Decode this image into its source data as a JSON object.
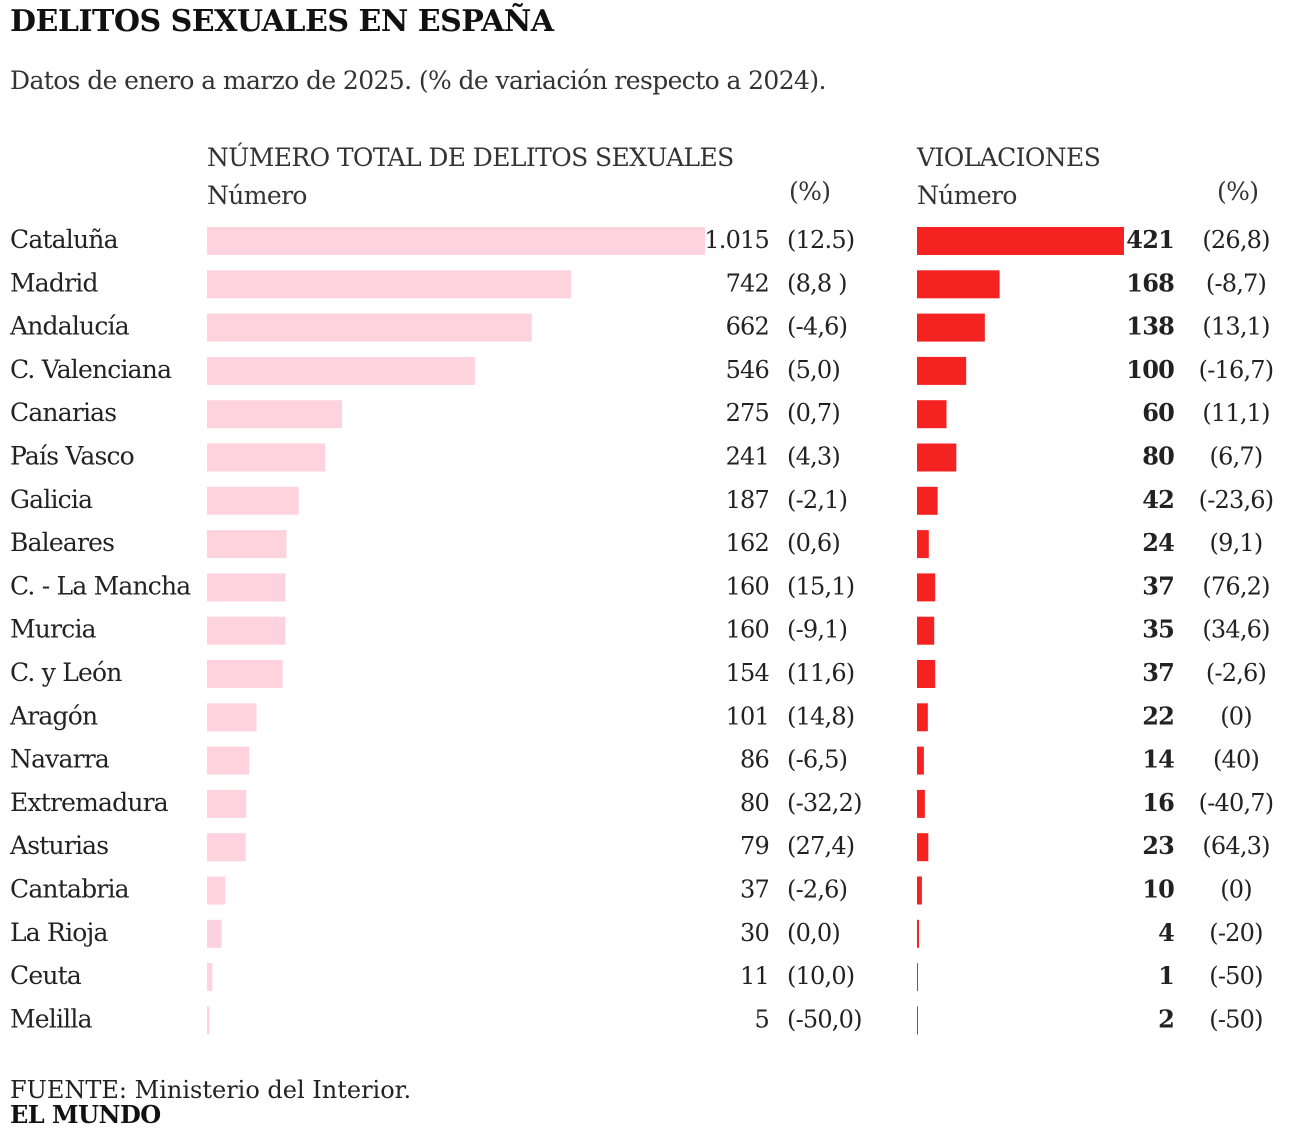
{
  "title": "DELITOS SEXUALES EN ESPAÑA",
  "subtitle": "Datos de enero a marzo de 2025.  (% de variación respecto a 2024).",
  "left_header": {
    "title": "NÚMERO TOTAL DE DELITOS SEXUALES",
    "num_label": "Número",
    "pct_label": "(%)"
  },
  "right_header": {
    "title": "VIOLACIONES",
    "num_label": "Número",
    "pct_label": "(%)"
  },
  "source_prefix": "FUENTE:",
  "source": "Ministerio del Interior.",
  "brand": "EL MUNDO",
  "colors": {
    "total_bar": "#ffd3de",
    "rape_bar": "#f52222",
    "text": "#222222"
  },
  "chart_data": {
    "type": "bar",
    "orientation": "horizontal",
    "categories": [
      "Cataluña",
      "Madrid",
      "Andalucía",
      "C. Valenciana",
      "Canarias",
      "País Vasco",
      "Galicia",
      "Baleares",
      "C. - La Mancha",
      "Murcia",
      "C. y León",
      "Aragón",
      "Navarra",
      "Extremadura",
      "Asturias",
      "Cantabria",
      "La Rioja",
      "Ceuta",
      "Melilla"
    ],
    "series": [
      {
        "name": "NÚMERO TOTAL DE DELITOS SEXUALES",
        "values": [
          1015,
          742,
          662,
          546,
          275,
          241,
          187,
          162,
          160,
          160,
          154,
          101,
          86,
          80,
          79,
          37,
          30,
          11,
          5
        ],
        "value_labels": [
          "1.015",
          "742",
          "662",
          "546",
          "275",
          "241",
          "187",
          "162",
          "160",
          "160",
          "154",
          "101",
          "86",
          "80",
          "79",
          "37",
          "30",
          "11",
          "5"
        ],
        "pct_labels": [
          "(12.5)",
          "(8,8 )",
          "(-4,6)",
          "(5,0)",
          "(0,7)",
          "(4,3)",
          "(-2,1)",
          "(0,6)",
          "(15,1)",
          "(-9,1)",
          "(11,6)",
          "(14,8)",
          "(-6,5)",
          "(-32,2)",
          "(27,4)",
          "(-2,6)",
          "(0,0)",
          "(10,0)",
          "(-50,0)"
        ]
      },
      {
        "name": "VIOLACIONES",
        "values": [
          421,
          168,
          138,
          100,
          60,
          80,
          42,
          24,
          37,
          35,
          37,
          22,
          14,
          16,
          23,
          10,
          4,
          1,
          2
        ],
        "value_labels": [
          "421",
          "168",
          "138",
          "100",
          "60",
          "80",
          "42",
          "24",
          "37",
          "35",
          "37",
          "22",
          "14",
          "16",
          "23",
          "10",
          "4",
          "1",
          "2"
        ],
        "pct_labels": [
          "(26,8)",
          "(-8,7)",
          "(13,1)",
          "(-16,7)",
          "(11,1)",
          "(6,7)",
          "(-23,6)",
          "(9,1)",
          "(76,2)",
          "(34,6)",
          "(-2,6)",
          "(0)",
          "(40)",
          "(-40,7)",
          "(64,3)",
          "(0)",
          "(-20)",
          "(-50)",
          "(-50)"
        ]
      }
    ]
  }
}
